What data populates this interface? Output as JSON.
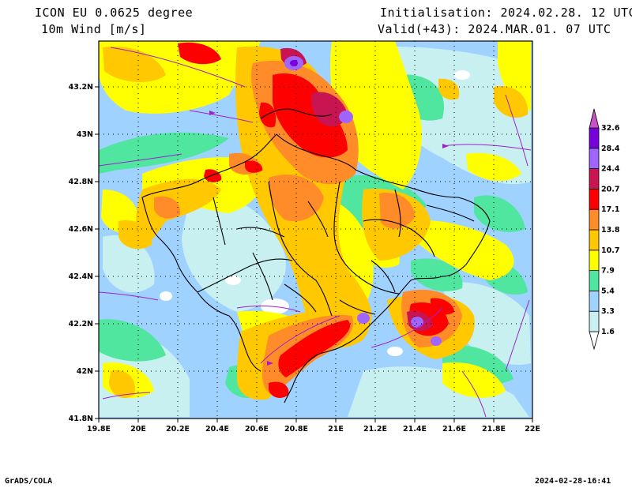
{
  "header": {
    "model": "ICON EU 0.0625 degree",
    "variable": "10m Wind [m/s]",
    "init": "Initialisation: 2024.02.28. 12 UTC",
    "valid": "Valid(+43): 2024.MAR.01. 07 UTC"
  },
  "footer": {
    "software": "GrADS/COLA",
    "timestamp": "2024-02-28-16:41"
  },
  "axes": {
    "lon_ticks": [
      "19.8E",
      "20E",
      "20.2E",
      "20.4E",
      "20.6E",
      "20.8E",
      "21E",
      "21.2E",
      "21.4E",
      "21.6E",
      "21.8E",
      "22E"
    ],
    "lat_ticks": [
      "41.8N",
      "42N",
      "42.2N",
      "42.4N",
      "42.6N",
      "42.8N",
      "43N",
      "43.2N"
    ],
    "lon_range": [
      19.8,
      22.0
    ],
    "lat_range": [
      41.8,
      43.4
    ]
  },
  "colorbar": {
    "labels": [
      "1.6",
      "3.3",
      "5.4",
      "7.9",
      "10.7",
      "13.8",
      "17.1",
      "20.7",
      "24.4",
      "28.4",
      "32.6"
    ],
    "colors": [
      "#ffffff",
      "#c8f0f0",
      "#a0d2ff",
      "#50e6a0",
      "#ffff00",
      "#ffc800",
      "#ff8c28",
      "#ff0000",
      "#c81450",
      "#a064ff",
      "#7800dc",
      "#c850c8"
    ]
  }
}
